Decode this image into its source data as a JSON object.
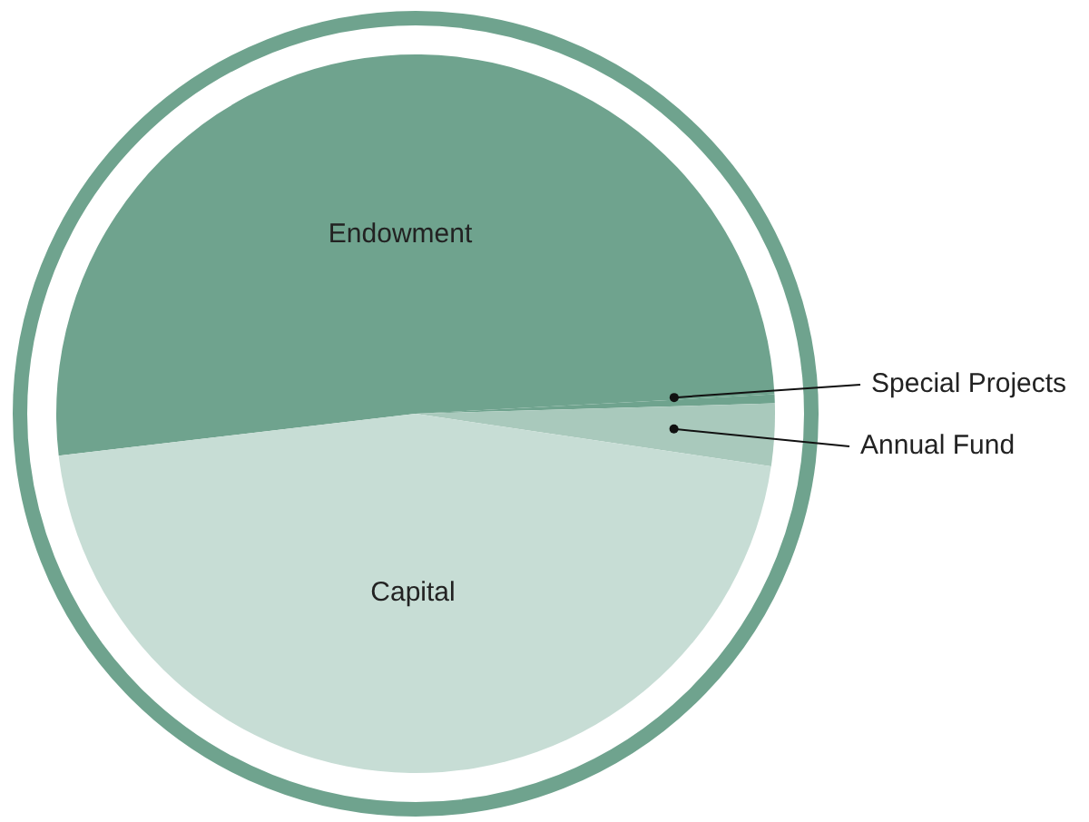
{
  "chart_data": {
    "type": "pie",
    "categories": [
      "Endowment",
      "Special Projects",
      "Annual Fund",
      "Capital"
    ],
    "values": [
      51,
      0.4,
      2.8,
      45.8
    ],
    "colors": [
      "#6fa38e",
      "#6fa38e",
      "#a9c9bc",
      "#c7ddd5"
    ]
  }
}
